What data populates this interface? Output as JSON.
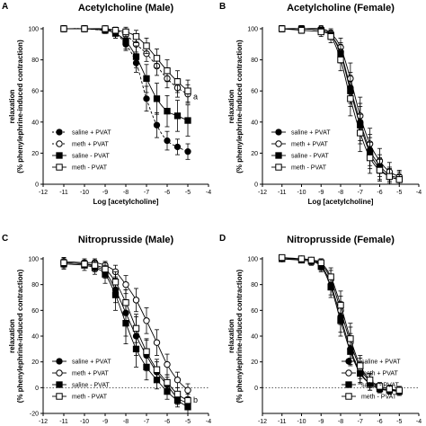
{
  "chart_data": [
    {
      "type": "line",
      "panel": "A",
      "title": "Acetylcholine (Male)",
      "xlabel": "Log [acetylcholine]",
      "ylabel_lines": [
        "relaxation",
        "(% phenylephrine-induced contraction)"
      ],
      "xlim": [
        -12,
        -4
      ],
      "ylim": [
        0,
        100
      ],
      "xticks": [
        -12,
        -11,
        -10,
        -9,
        -8,
        -7,
        -6,
        -5,
        -4
      ],
      "yticks": [
        0,
        20,
        40,
        60,
        80,
        100
      ],
      "x": [
        -11,
        -10,
        -9,
        -8.5,
        -8,
        -7.5,
        -7,
        -6.5,
        -6,
        -5.5,
        -5
      ],
      "legend_position": "bottom-left",
      "annotation": "a",
      "series": [
        {
          "name": "saline + PVAT",
          "marker": "circle-filled",
          "line": "dashed",
          "values": [
            100,
            100,
            99,
            97,
            90,
            78,
            55,
            38,
            28,
            24,
            21
          ],
          "err": [
            2,
            2,
            2,
            3,
            4,
            6,
            8,
            8,
            6,
            5,
            5
          ]
        },
        {
          "name": "meth + PVAT",
          "marker": "circle-open",
          "line": "dashed",
          "values": [
            100,
            100,
            99,
            99,
            96,
            90,
            84,
            76,
            68,
            62,
            58
          ],
          "err": [
            2,
            2,
            2,
            2,
            4,
            5,
            5,
            6,
            6,
            6,
            6
          ]
        },
        {
          "name": "saline - PVAT",
          "marker": "square-filled",
          "line": "solid",
          "values": [
            100,
            100,
            99,
            97,
            92,
            82,
            68,
            55,
            47,
            44,
            41
          ],
          "err": [
            2,
            2,
            2,
            3,
            5,
            7,
            9,
            10,
            10,
            10,
            10
          ]
        },
        {
          "name": "meth - PVAT",
          "marker": "square-open",
          "line": "solid",
          "values": [
            100,
            100,
            100,
            99,
            98,
            95,
            89,
            81,
            73,
            66,
            60
          ],
          "err": [
            2,
            2,
            2,
            2,
            3,
            4,
            5,
            6,
            7,
            7,
            7
          ]
        }
      ]
    },
    {
      "type": "line",
      "panel": "B",
      "title": "Acetylcholine (Female)",
      "xlabel": "Log [acetylcholine]",
      "ylabel_lines": [
        "relaxation",
        "(% phenylephrine-induced contraction)"
      ],
      "xlim": [
        -12,
        -4
      ],
      "ylim": [
        0,
        100
      ],
      "xticks": [
        -12,
        -11,
        -10,
        -9,
        -8,
        -7,
        -6,
        -5,
        -4
      ],
      "yticks": [
        0,
        20,
        40,
        60,
        80,
        100
      ],
      "x": [
        -11,
        -10,
        -9,
        -8.5,
        -8,
        -7.5,
        -7,
        -6.5,
        -6,
        -5.5,
        -5
      ],
      "legend_position": "bottom-left",
      "annotation": "",
      "series": [
        {
          "name": "saline + PVAT",
          "marker": "circle-filled",
          "line": "solid",
          "values": [
            100,
            100,
            99,
            96,
            85,
            62,
            40,
            22,
            12,
            6,
            4
          ],
          "err": [
            2,
            2,
            2,
            3,
            6,
            10,
            12,
            10,
            7,
            5,
            4
          ]
        },
        {
          "name": "meth + PVAT",
          "marker": "circle-open",
          "line": "solid",
          "values": [
            100,
            100,
            100,
            97,
            88,
            68,
            44,
            26,
            15,
            8,
            5
          ],
          "err": [
            2,
            2,
            2,
            3,
            6,
            10,
            12,
            10,
            8,
            6,
            4
          ]
        },
        {
          "name": "saline - PVAT",
          "marker": "square-filled",
          "line": "solid",
          "values": [
            100,
            100,
            99,
            96,
            84,
            60,
            38,
            20,
            10,
            5,
            3
          ],
          "err": [
            2,
            2,
            2,
            3,
            6,
            10,
            12,
            10,
            7,
            5,
            3
          ]
        },
        {
          "name": "meth - PVAT",
          "marker": "square-open",
          "line": "solid",
          "values": [
            100,
            99,
            98,
            95,
            80,
            55,
            33,
            17,
            9,
            5,
            3
          ],
          "err": [
            2,
            2,
            3,
            4,
            7,
            11,
            12,
            10,
            7,
            5,
            3
          ]
        }
      ]
    },
    {
      "type": "line",
      "panel": "C",
      "title": "Nitroprusside (Male)",
      "xlabel": "Log [nitroprusside]",
      "ylabel_lines": [
        "relaxation",
        "(% phenylephrine-induced contraction)"
      ],
      "xlim": [
        -12,
        -4
      ],
      "ylim": [
        -20,
        100
      ],
      "xticks": [
        -12,
        -11,
        -10,
        -9,
        -8,
        -7,
        -6,
        -5,
        -4
      ],
      "yticks": [
        -20,
        0,
        20,
        40,
        60,
        80,
        100
      ],
      "x": [
        -11,
        -10,
        -9.5,
        -9,
        -8.5,
        -8,
        -7.5,
        -7,
        -6.5,
        -6,
        -5.5,
        -5
      ],
      "legend_position": "bottom-left",
      "annotation": "b",
      "series": [
        {
          "name": "saline + PVAT",
          "marker": "circle-filled",
          "line": "solid",
          "values": [
            97,
            96,
            94,
            90,
            76,
            58,
            40,
            25,
            12,
            2,
            -8,
            -12
          ],
          "err": [
            4,
            3,
            4,
            5,
            10,
            18,
            15,
            12,
            8,
            6,
            5,
            5
          ]
        },
        {
          "name": "meth + PVAT",
          "marker": "circle-open",
          "line": "solid",
          "values": [
            98,
            97,
            97,
            95,
            90,
            80,
            68,
            52,
            35,
            18,
            6,
            -2
          ],
          "err": [
            3,
            3,
            3,
            3,
            5,
            7,
            9,
            10,
            10,
            8,
            6,
            5
          ]
        },
        {
          "name": "saline - PVAT",
          "marker": "square-filled",
          "line": "solid",
          "values": [
            96,
            95,
            93,
            88,
            72,
            50,
            30,
            16,
            6,
            -3,
            -10,
            -15
          ],
          "err": [
            4,
            4,
            5,
            7,
            12,
            16,
            14,
            10,
            7,
            6,
            5,
            5
          ]
        },
        {
          "name": "meth - PVAT",
          "marker": "square-open",
          "line": "solid",
          "values": [
            97,
            96,
            95,
            92,
            82,
            66,
            46,
            28,
            14,
            4,
            -5,
            -10
          ],
          "err": [
            3,
            3,
            4,
            5,
            8,
            10,
            11,
            10,
            8,
            6,
            5,
            5
          ]
        }
      ]
    },
    {
      "type": "line",
      "panel": "D",
      "title": "Nitroprusside (Female)",
      "xlabel": "Log [nitroprusside]",
      "ylabel_lines": [
        "relaxation",
        "(% phenylephrine-induced contraction)"
      ],
      "xlim": [
        -12,
        -4
      ],
      "ylim": [
        -20,
        100
      ],
      "xticks": [
        -12,
        -11,
        -10,
        -9,
        -8,
        -7,
        -6,
        -5,
        -4
      ],
      "yticks": [
        0,
        20,
        40,
        60,
        80,
        100
      ],
      "x": [
        -11,
        -10,
        -9.5,
        -9,
        -8.5,
        -8,
        -7.5,
        -7,
        -6.5,
        -6,
        -5.5,
        -5
      ],
      "legend_position": "bottom-right",
      "annotation": "",
      "series": [
        {
          "name": "saline + PVAT",
          "marker": "circle-filled",
          "line": "solid",
          "values": [
            100,
            99,
            98,
            95,
            80,
            55,
            30,
            12,
            3,
            -1,
            -2,
            -3
          ],
          "err": [
            2,
            2,
            3,
            4,
            8,
            12,
            12,
            8,
            5,
            3,
            3,
            3
          ]
        },
        {
          "name": "meth + PVAT",
          "marker": "circle-open",
          "line": "solid",
          "values": [
            100,
            100,
            99,
            96,
            84,
            60,
            35,
            15,
            5,
            0,
            -2,
            -2
          ],
          "err": [
            2,
            2,
            2,
            4,
            7,
            11,
            12,
            8,
            5,
            3,
            3,
            3
          ]
        },
        {
          "name": "saline - PVAT",
          "marker": "square-filled",
          "line": "solid",
          "values": [
            100,
            99,
            98,
            94,
            78,
            52,
            28,
            11,
            3,
            -1,
            -2,
            -3
          ],
          "err": [
            2,
            2,
            3,
            4,
            8,
            12,
            11,
            8,
            5,
            3,
            3,
            3
          ]
        },
        {
          "name": "meth - PVAT",
          "marker": "square-open",
          "line": "solid",
          "values": [
            101,
            100,
            99,
            97,
            86,
            64,
            38,
            17,
            6,
            1,
            -1,
            -2
          ],
          "err": [
            2,
            2,
            2,
            3,
            7,
            11,
            12,
            8,
            5,
            3,
            3,
            3
          ]
        }
      ]
    }
  ]
}
